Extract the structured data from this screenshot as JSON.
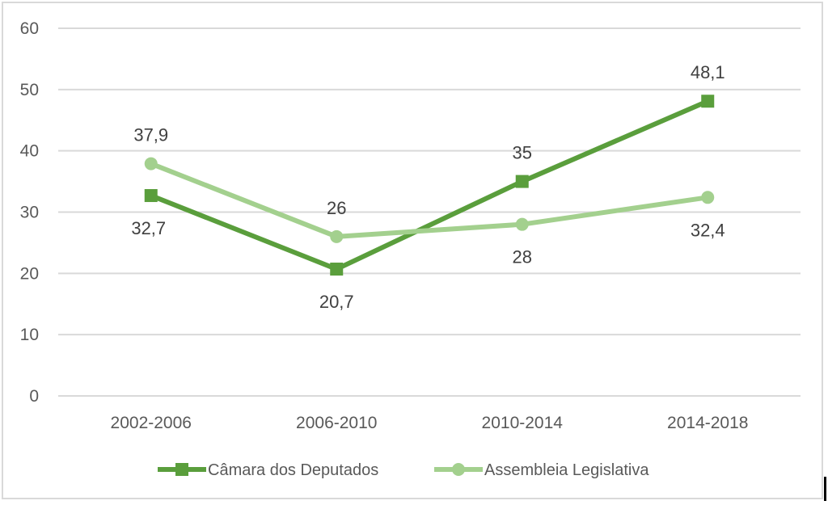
{
  "chart_data": {
    "type": "line",
    "title": "",
    "xlabel": "",
    "ylabel": "",
    "categories": [
      "2002-2006",
      "2006-2010",
      "2010-2014",
      "2014-2018"
    ],
    "ylim": [
      0,
      60
    ],
    "yticks": [
      "0",
      "10",
      "20",
      "30",
      "40",
      "50",
      "60"
    ],
    "ytick_values": [
      0,
      10,
      20,
      30,
      40,
      50,
      60
    ],
    "grid": true,
    "legend_position": "bottom",
    "series": [
      {
        "name": "Câmara dos Deputados",
        "values": [
          32.7,
          20.7,
          35,
          48.1
        ],
        "labels": [
          "32,7",
          "20,7",
          "35",
          "48,1"
        ],
        "label_positions": [
          "below",
          "below",
          "above",
          "above"
        ],
        "color": "#5a9e3c",
        "marker": "square"
      },
      {
        "name": "Assembleia Legislativa",
        "values": [
          37.9,
          26,
          28,
          32.4
        ],
        "labels": [
          "37,9",
          "26",
          "28",
          "32,4"
        ],
        "label_positions": [
          "above",
          "above",
          "below",
          "below"
        ],
        "color": "#a3d08e",
        "marker": "circle"
      }
    ]
  }
}
